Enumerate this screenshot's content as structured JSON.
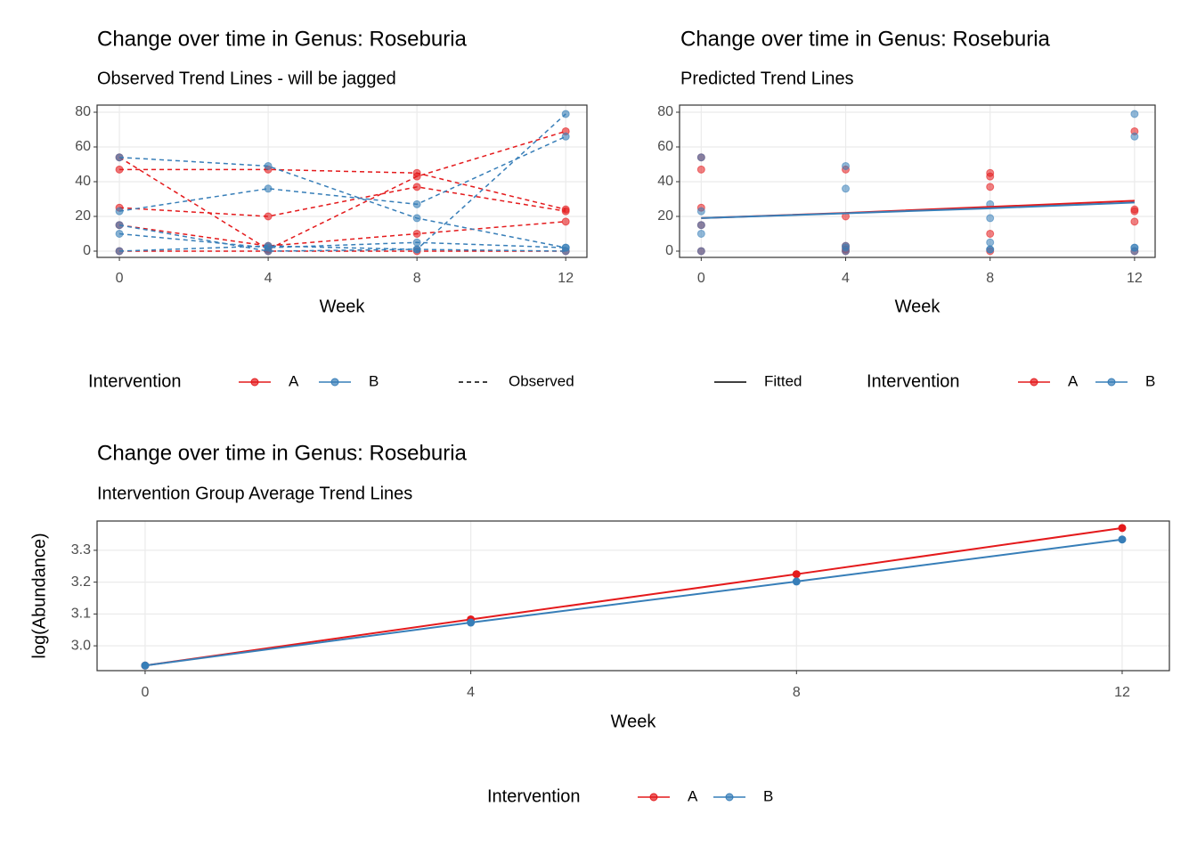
{
  "chart_data": [
    {
      "type": "line",
      "linestyle": "dashed",
      "title": "Change over time in Genus: Roseburia",
      "subtitle": "Observed Trend Lines - will be jagged",
      "x_label": "Week",
      "x": [
        0,
        4,
        8,
        12
      ],
      "xlim": [
        -0.6,
        12.57
      ],
      "xticks": [
        0,
        4,
        8,
        12
      ],
      "ylim": [
        -3.6,
        84.1
      ],
      "yticks": [
        0,
        20,
        40,
        60,
        80
      ],
      "grid": true,
      "legend_title": "Intervention",
      "linetype_legend": "Observed",
      "groups": [
        {
          "name": "A",
          "color": "#E41A1C",
          "subjects": [
            [
              47,
              47,
              45,
              24
            ],
            [
              54,
              1,
              43,
              69
            ],
            [
              25,
              20,
              37,
              23
            ],
            [
              15,
              3,
              10,
              17
            ],
            [
              0,
              0,
              0,
              0
            ]
          ]
        },
        {
          "name": "B",
          "color": "#377EB8",
          "subjects": [
            [
              54,
              49,
              19,
              2
            ],
            [
              23,
              36,
              27,
              66
            ],
            [
              10,
              2,
              5,
              2
            ],
            [
              15,
              0,
              1,
              79
            ],
            [
              0,
              3,
              1,
              0
            ]
          ]
        }
      ]
    },
    {
      "type": "scatter",
      "title": "Change over time in Genus: Roseburia",
      "subtitle": "Predicted Trend Lines",
      "x_label": "Week",
      "x": [
        0,
        4,
        8,
        12
      ],
      "xlim": [
        -0.6,
        12.57
      ],
      "xticks": [
        0,
        4,
        8,
        12
      ],
      "ylim": [
        -3.6,
        84.1
      ],
      "yticks": [
        0,
        20,
        40,
        60,
        80
      ],
      "grid": true,
      "legend_title": "Intervention",
      "linetype_legend": "Fitted",
      "groups": [
        {
          "name": "A",
          "color": "#E41A1C",
          "subjects": [
            [
              47,
              47,
              45,
              24
            ],
            [
              54,
              1,
              43,
              69
            ],
            [
              25,
              20,
              37,
              23
            ],
            [
              15,
              3,
              10,
              17
            ],
            [
              0,
              0,
              0,
              0
            ]
          ],
          "fitted": [
            19,
            22,
            25.5,
            29
          ]
        },
        {
          "name": "B",
          "color": "#377EB8",
          "subjects": [
            [
              54,
              49,
              19,
              2
            ],
            [
              23,
              36,
              27,
              66
            ],
            [
              10,
              2,
              5,
              2
            ],
            [
              15,
              0,
              1,
              79
            ],
            [
              0,
              3,
              1,
              0
            ]
          ],
          "fitted": [
            19,
            21.8,
            24.7,
            28
          ]
        }
      ]
    },
    {
      "type": "line",
      "linestyle": "solid",
      "title": "Change over time in Genus: Roseburia",
      "subtitle": "Intervention Group Average Trend Lines",
      "x_label": "Week",
      "y_label": "log(Abundance)",
      "x": [
        0,
        4,
        8,
        12
      ],
      "xlim": [
        -0.59,
        12.58
      ],
      "xticks": [
        0,
        4,
        8,
        12
      ],
      "ylim": [
        2.922,
        3.392
      ],
      "yticks": [
        {
          "value": 3,
          "label": "3.0"
        },
        3.1,
        3.2,
        3.3
      ],
      "grid": true,
      "legend_title": "Intervention",
      "groups": [
        {
          "name": "A",
          "color": "#E41A1C",
          "values": [
            2.938,
            3.083,
            3.225,
            3.37
          ]
        },
        {
          "name": "B",
          "color": "#377EB8",
          "values": [
            2.938,
            3.073,
            3.202,
            3.334
          ]
        }
      ]
    }
  ]
}
